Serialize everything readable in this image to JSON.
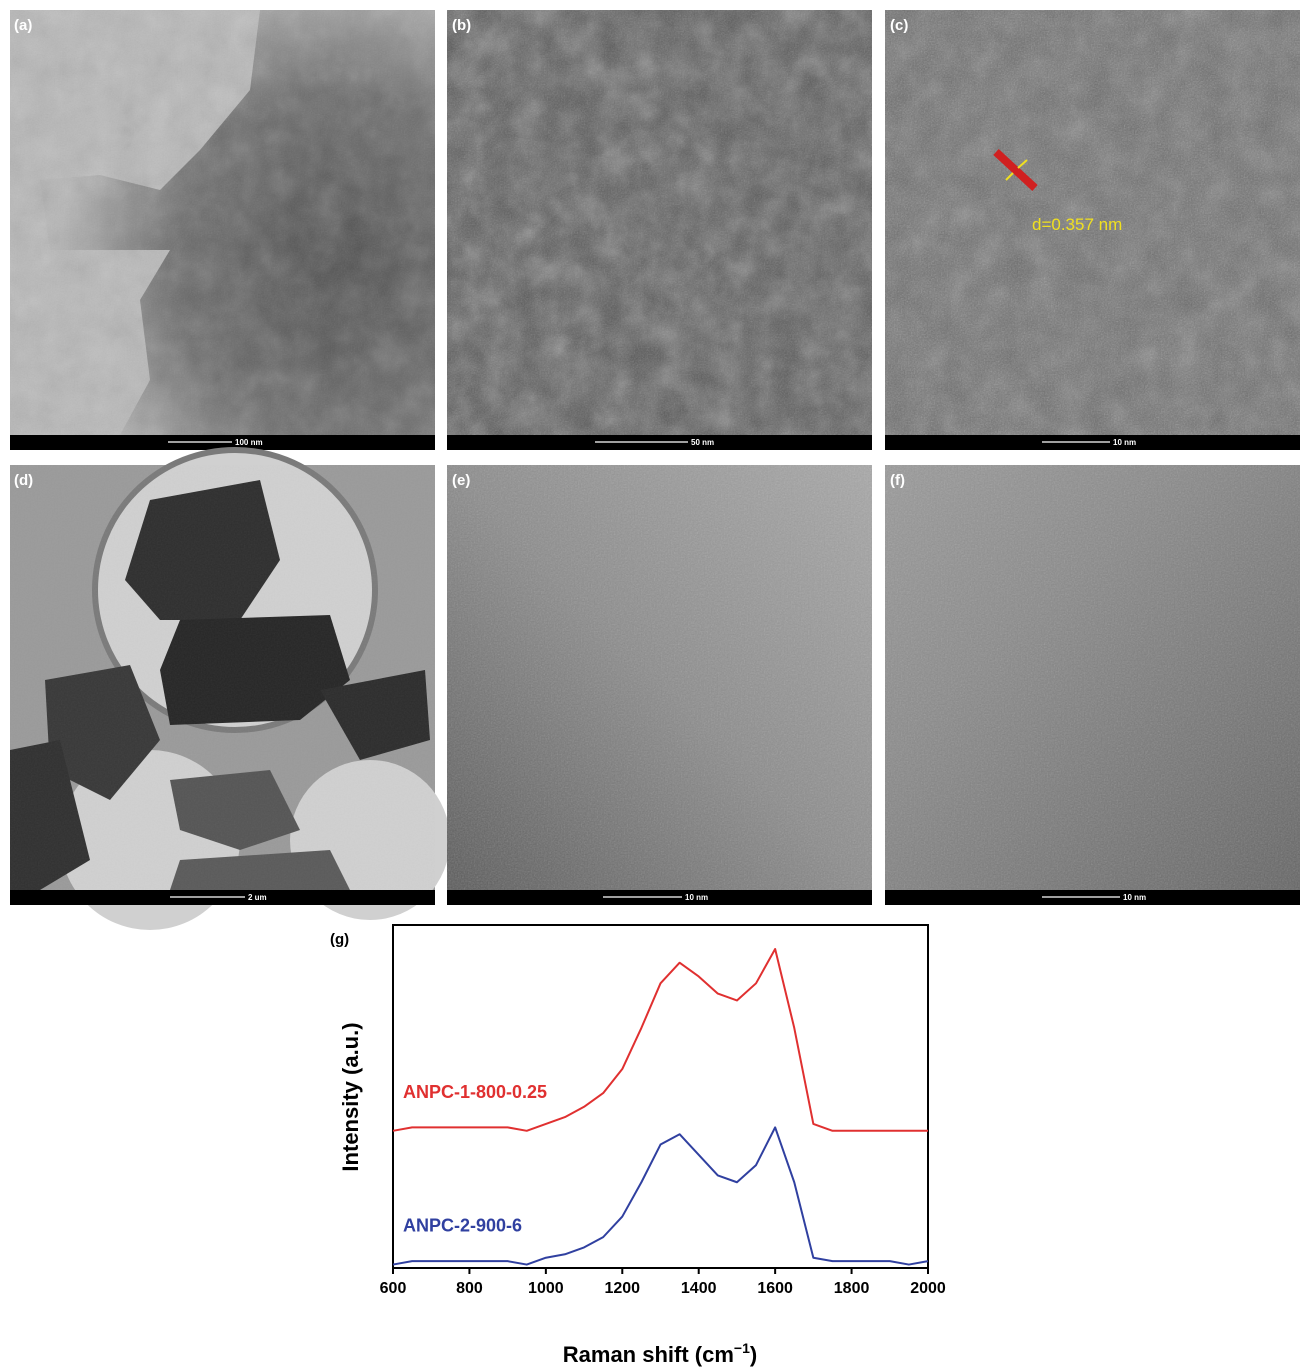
{
  "panels": [
    {
      "label": "(a)",
      "scale_bar": "100 nm"
    },
    {
      "label": "(b)",
      "scale_bar": "50 nm"
    },
    {
      "label": "(c)",
      "scale_bar": "10 nm",
      "annotation": "d=0.357 nm"
    },
    {
      "label": "(d)",
      "scale_bar": "2 um"
    },
    {
      "label": "(e)",
      "scale_bar": "10 nm"
    },
    {
      "label": "(f)",
      "scale_bar": "10 nm"
    }
  ],
  "chart_data": {
    "type": "line",
    "panel_label": "(g)",
    "x_label": "Raman shift (cm",
    "x_label_sup": "−1",
    "x_label_end": ")",
    "y_label": "Intensity (a.u.)",
    "x": [
      600,
      650,
      700,
      750,
      800,
      850,
      900,
      950,
      1000,
      1050,
      1100,
      1150,
      1200,
      1250,
      1300,
      1350,
      1400,
      1450,
      1500,
      1550,
      1600,
      1650,
      1700,
      1750,
      1800,
      1850,
      1900,
      1950,
      2000
    ],
    "series": [
      {
        "name": "ANPC-1-800-0.25",
        "color": "#e03030",
        "values": [
          0.4,
          0.41,
          0.41,
          0.41,
          0.41,
          0.41,
          0.41,
          0.4,
          0.42,
          0.44,
          0.47,
          0.51,
          0.58,
          0.7,
          0.83,
          0.89,
          0.85,
          0.8,
          0.78,
          0.83,
          0.93,
          0.7,
          0.42,
          0.4,
          0.4,
          0.4,
          0.4,
          0.4,
          0.4
        ]
      },
      {
        "name": "ANPC-2-900-6",
        "color": "#3040a0",
        "values": [
          0.01,
          0.02,
          0.02,
          0.02,
          0.02,
          0.02,
          0.02,
          0.01,
          0.03,
          0.04,
          0.06,
          0.09,
          0.15,
          0.25,
          0.36,
          0.39,
          0.33,
          0.27,
          0.25,
          0.3,
          0.41,
          0.25,
          0.03,
          0.02,
          0.02,
          0.02,
          0.02,
          0.01,
          0.02
        ]
      }
    ],
    "xlim": [
      600,
      2000
    ],
    "xticks": [
      600,
      800,
      1000,
      1200,
      1400,
      1600,
      1800,
      2000
    ],
    "ylim": [
      0,
      1
    ]
  }
}
